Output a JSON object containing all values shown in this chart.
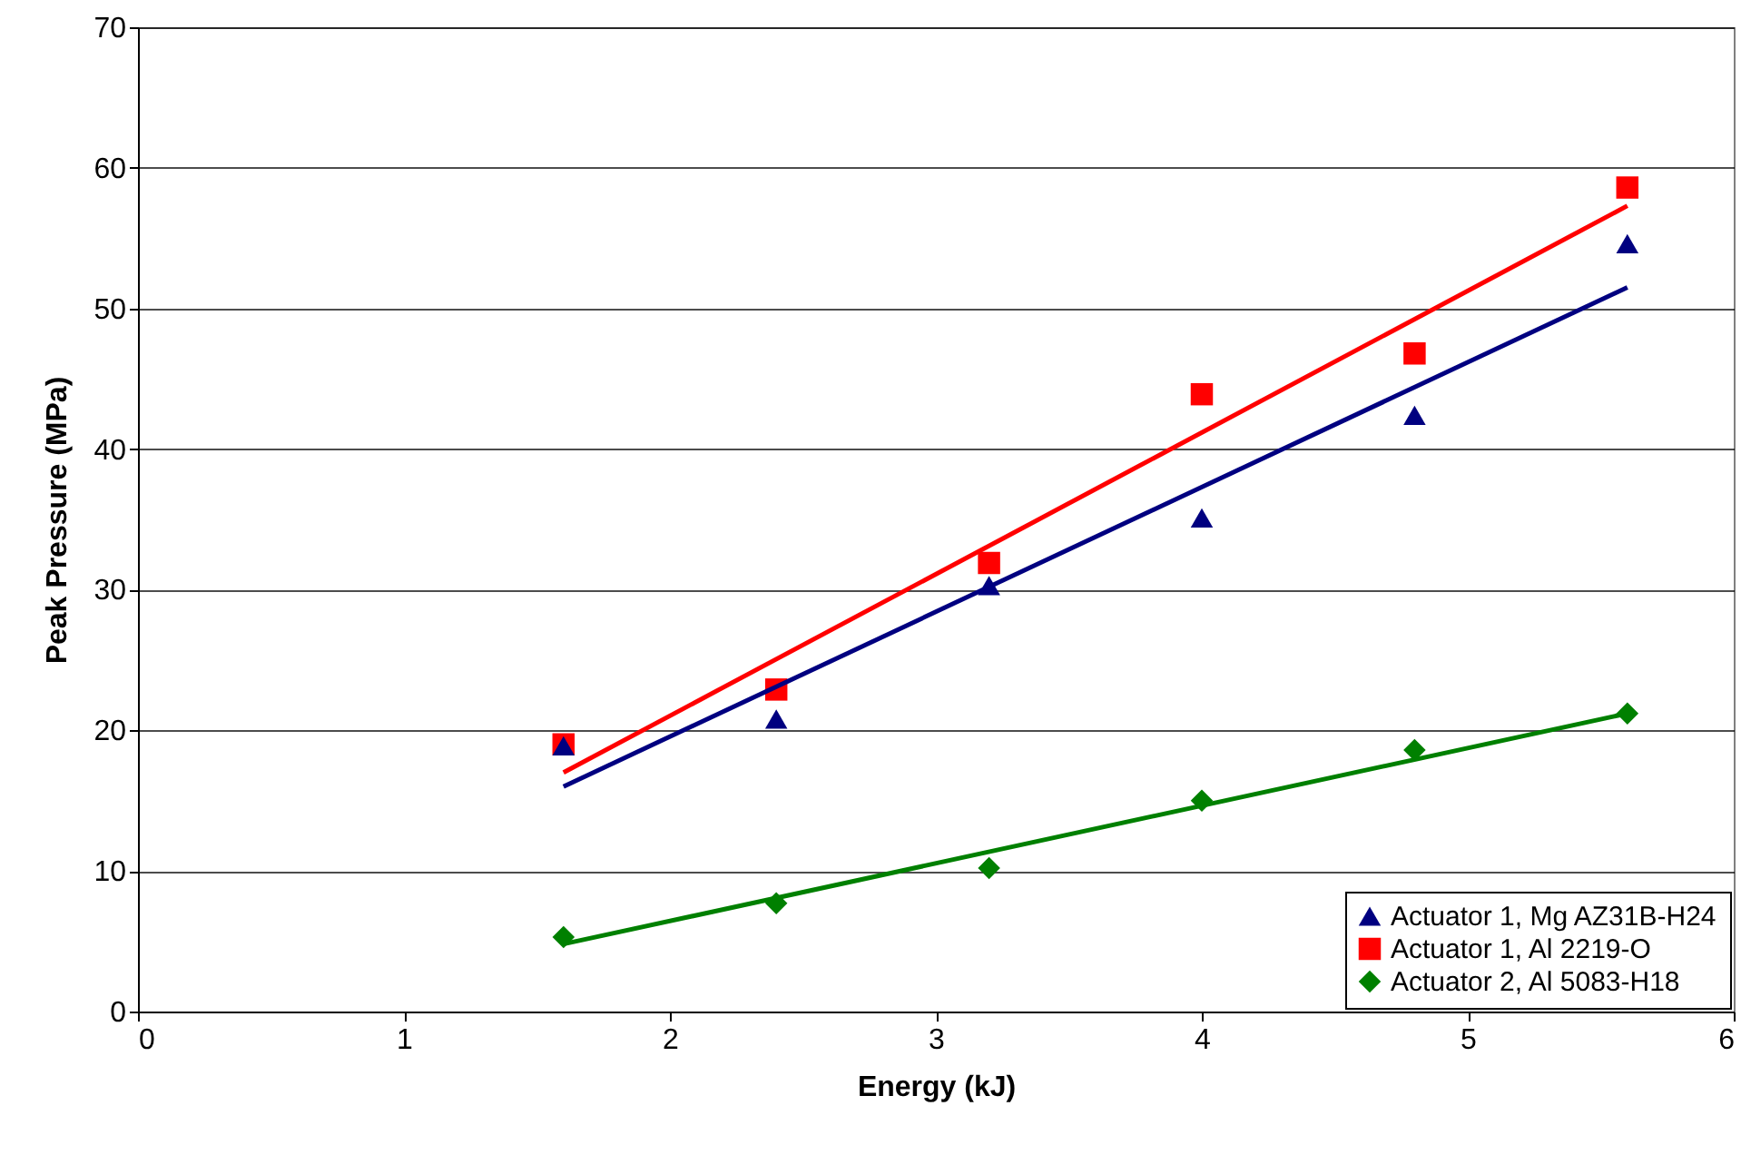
{
  "chart_data": {
    "type": "scatter",
    "xlabel": "Energy (kJ)",
    "ylabel": "Peak Pressure (MPa)",
    "xlim": [
      0,
      6
    ],
    "xticks": [
      0,
      1,
      2,
      3,
      4,
      5,
      6
    ],
    "ylim": [
      0,
      70
    ],
    "yticks": [
      0,
      10,
      20,
      30,
      40,
      50,
      60,
      70
    ],
    "grid": "y",
    "legend": "bottom right",
    "series": [
      {
        "name": "Actuator 1, Mg AZ31B-H24",
        "marker": "triangle",
        "color": "#000080",
        "x": [
          1.6,
          2.4,
          3.2,
          4.0,
          4.8,
          5.6
        ],
        "values": [
          18.9,
          20.8,
          30.3,
          35.1,
          42.4,
          54.6
        ]
      },
      {
        "name": "Actuator 1, Al 2219-O",
        "marker": "square",
        "color": "#ff0000",
        "x": [
          1.6,
          2.4,
          3.2,
          4.0,
          4.8,
          5.6
        ],
        "values": [
          19.0,
          22.9,
          31.9,
          43.9,
          46.8,
          58.6
        ]
      },
      {
        "name": "Actuator 2, Al 5083-H18",
        "marker": "diamond",
        "color": "#008000",
        "x": [
          1.6,
          2.4,
          3.2,
          4.0,
          4.8,
          5.6
        ],
        "values": [
          5.3,
          7.7,
          10.2,
          15.0,
          18.6,
          21.2
        ]
      },
      {
        "type": "line",
        "marker": "none",
        "color": "#000080",
        "x": [
          1.6,
          5.6
        ],
        "values": [
          16.0,
          51.5
        ]
      },
      {
        "type": "line",
        "marker": "none",
        "color": "#ff0000",
        "x": [
          1.6,
          5.6
        ],
        "values": [
          17.0,
          57.3
        ]
      },
      {
        "type": "line",
        "marker": "none",
        "color": "#008000",
        "x": [
          1.6,
          5.6
        ],
        "values": [
          4.8,
          21.2
        ]
      }
    ]
  }
}
